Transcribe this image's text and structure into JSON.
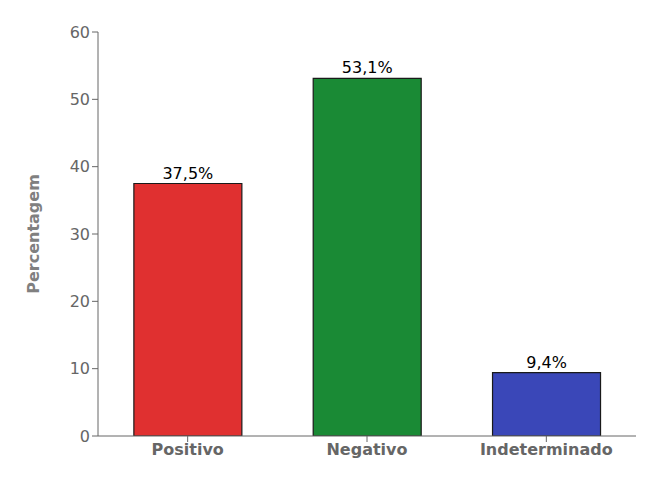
{
  "chart_data": {
    "type": "bar",
    "categories": [
      "Positivo",
      "Negativo",
      "Indeterminado"
    ],
    "values": [
      37.5,
      53.1,
      9.4
    ],
    "value_labels": [
      "37,5%",
      "53,1%",
      "9,4%"
    ],
    "data_labels": true,
    "colors": [
      "#e03030",
      "#1a8a35",
      "#3a47b8"
    ],
    "ylabel": "Percentagem",
    "ylim": [
      0,
      60
    ],
    "yticks": [
      0,
      10,
      20,
      30,
      40,
      50,
      60
    ],
    "grid": false
  }
}
